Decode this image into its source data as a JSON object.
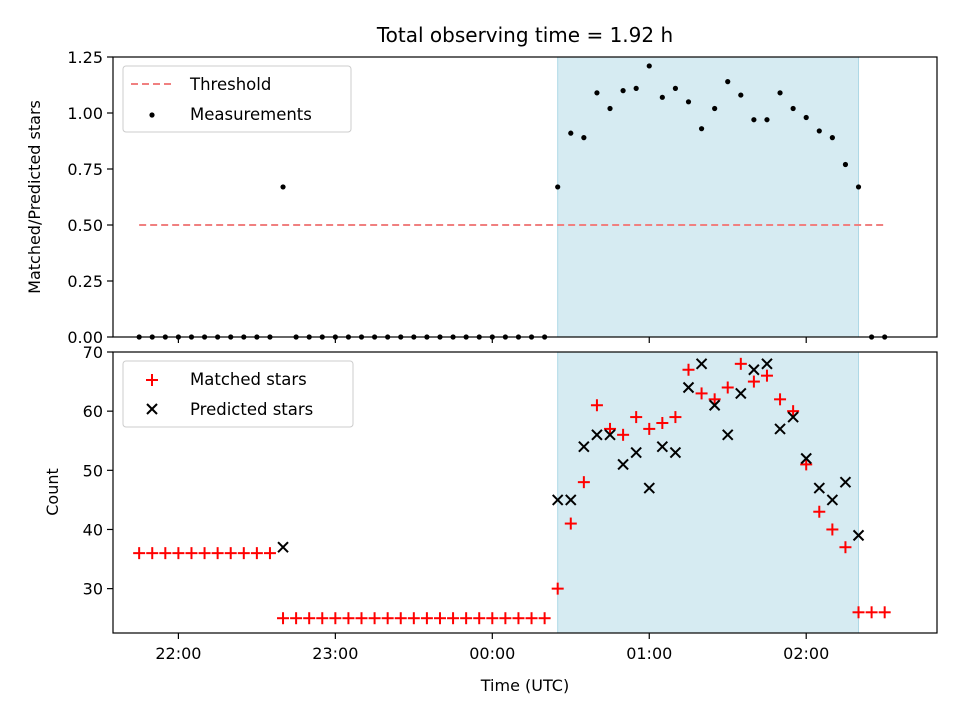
{
  "title": "Total observing time = 1.92 h",
  "colors": {
    "threshold": "#f08080",
    "measurements": "#000000",
    "matched": "#ff0000",
    "predicted": "#000000",
    "shade": "#add8e6"
  },
  "chart_data": [
    {
      "type": "scatter",
      "panel": "top",
      "ylabel": "Matched/Predicted stars",
      "ylim": [
        0,
        1.25
      ],
      "yticks": [
        "0.00",
        "0.25",
        "0.50",
        "0.75",
        "1.00",
        "1.25"
      ],
      "xlim": [
        "21:35",
        "02:50"
      ],
      "shaded_span": [
        "00:25",
        "02:20"
      ],
      "legend_position": "upper left",
      "threshold": {
        "name": "Threshold",
        "value": 0.5,
        "x": [
          "21:45",
          "02:30"
        ]
      },
      "series": [
        {
          "name": "Measurements",
          "points": [
            [
              "21:45",
              0
            ],
            [
              "21:50",
              0
            ],
            [
              "21:55",
              0
            ],
            [
              "22:00",
              0
            ],
            [
              "22:05",
              0
            ],
            [
              "22:10",
              0
            ],
            [
              "22:15",
              0
            ],
            [
              "22:20",
              0
            ],
            [
              "22:25",
              0
            ],
            [
              "22:30",
              0
            ],
            [
              "22:35",
              0
            ],
            [
              "22:40",
              0.67
            ],
            [
              "22:45",
              0
            ],
            [
              "22:50",
              0
            ],
            [
              "22:55",
              0
            ],
            [
              "23:00",
              0
            ],
            [
              "23:05",
              0
            ],
            [
              "23:10",
              0
            ],
            [
              "23:15",
              0
            ],
            [
              "23:20",
              0
            ],
            [
              "23:25",
              0
            ],
            [
              "23:30",
              0
            ],
            [
              "23:35",
              0
            ],
            [
              "23:40",
              0
            ],
            [
              "23:45",
              0
            ],
            [
              "23:50",
              0
            ],
            [
              "23:55",
              0
            ],
            [
              "00:00",
              0
            ],
            [
              "00:05",
              0
            ],
            [
              "00:10",
              0
            ],
            [
              "00:15",
              0
            ],
            [
              "00:20",
              0
            ],
            [
              "00:25",
              0.67
            ],
            [
              "00:30",
              0.91
            ],
            [
              "00:35",
              0.89
            ],
            [
              "00:40",
              1.09
            ],
            [
              "00:45",
              1.02
            ],
            [
              "00:50",
              1.1
            ],
            [
              "00:55",
              1.11
            ],
            [
              "01:00",
              1.21
            ],
            [
              "01:05",
              1.07
            ],
            [
              "01:10",
              1.11
            ],
            [
              "01:15",
              1.05
            ],
            [
              "01:20",
              0.93
            ],
            [
              "01:25",
              1.02
            ],
            [
              "01:30",
              1.14
            ],
            [
              "01:35",
              1.08
            ],
            [
              "01:40",
              0.97
            ],
            [
              "01:45",
              0.97
            ],
            [
              "01:50",
              1.09
            ],
            [
              "01:55",
              1.02
            ],
            [
              "02:00",
              0.98
            ],
            [
              "02:05",
              0.92
            ],
            [
              "02:10",
              0.89
            ],
            [
              "02:15",
              0.77
            ],
            [
              "02:20",
              0.67
            ],
            [
              "02:25",
              0
            ],
            [
              "02:30",
              0
            ]
          ]
        }
      ]
    },
    {
      "type": "scatter",
      "panel": "bottom",
      "xlabel": "Time (UTC)",
      "ylabel": "Count",
      "ylim": [
        22.5,
        70
      ],
      "yticks": [
        "30",
        "40",
        "50",
        "60",
        "70"
      ],
      "xlim": [
        "21:35",
        "02:50"
      ],
      "xticks": [
        "22:00",
        "23:00",
        "00:00",
        "01:00",
        "02:00"
      ],
      "shaded_span": [
        "00:25",
        "02:20"
      ],
      "legend_position": "upper left",
      "series": [
        {
          "name": "Matched stars",
          "marker": "plus",
          "points": [
            [
              "21:45",
              36
            ],
            [
              "21:50",
              36
            ],
            [
              "21:55",
              36
            ],
            [
              "22:00",
              36
            ],
            [
              "22:05",
              36
            ],
            [
              "22:10",
              36
            ],
            [
              "22:15",
              36
            ],
            [
              "22:20",
              36
            ],
            [
              "22:25",
              36
            ],
            [
              "22:30",
              36
            ],
            [
              "22:35",
              36
            ],
            [
              "22:40",
              25
            ],
            [
              "22:45",
              25
            ],
            [
              "22:50",
              25
            ],
            [
              "22:55",
              25
            ],
            [
              "23:00",
              25
            ],
            [
              "23:05",
              25
            ],
            [
              "23:10",
              25
            ],
            [
              "23:15",
              25
            ],
            [
              "23:20",
              25
            ],
            [
              "23:25",
              25
            ],
            [
              "23:30",
              25
            ],
            [
              "23:35",
              25
            ],
            [
              "23:40",
              25
            ],
            [
              "23:45",
              25
            ],
            [
              "23:50",
              25
            ],
            [
              "23:55",
              25
            ],
            [
              "00:00",
              25
            ],
            [
              "00:05",
              25
            ],
            [
              "00:10",
              25
            ],
            [
              "00:15",
              25
            ],
            [
              "00:20",
              25
            ],
            [
              "00:25",
              30
            ],
            [
              "00:30",
              41
            ],
            [
              "00:35",
              48
            ],
            [
              "00:40",
              61
            ],
            [
              "00:45",
              57
            ],
            [
              "00:50",
              56
            ],
            [
              "00:55",
              59
            ],
            [
              "01:00",
              57
            ],
            [
              "01:05",
              58
            ],
            [
              "01:10",
              59
            ],
            [
              "01:15",
              67
            ],
            [
              "01:20",
              63
            ],
            [
              "01:25",
              62
            ],
            [
              "01:30",
              64
            ],
            [
              "01:35",
              68
            ],
            [
              "01:40",
              65
            ],
            [
              "01:45",
              66
            ],
            [
              "01:50",
              62
            ],
            [
              "01:55",
              60
            ],
            [
              "02:00",
              51
            ],
            [
              "02:05",
              43
            ],
            [
              "02:10",
              40
            ],
            [
              "02:15",
              37
            ],
            [
              "02:20",
              26
            ],
            [
              "02:25",
              26
            ],
            [
              "02:30",
              26
            ]
          ]
        },
        {
          "name": "Predicted stars",
          "marker": "x",
          "points": [
            [
              "22:40",
              37
            ],
            [
              "00:25",
              45
            ],
            [
              "00:30",
              45
            ],
            [
              "00:35",
              54
            ],
            [
              "00:40",
              56
            ],
            [
              "00:45",
              56
            ],
            [
              "00:50",
              51
            ],
            [
              "00:55",
              53
            ],
            [
              "01:00",
              47
            ],
            [
              "01:05",
              54
            ],
            [
              "01:10",
              53
            ],
            [
              "01:15",
              64
            ],
            [
              "01:20",
              68
            ],
            [
              "01:25",
              61
            ],
            [
              "01:30",
              56
            ],
            [
              "01:35",
              63
            ],
            [
              "01:40",
              67
            ],
            [
              "01:45",
              68
            ],
            [
              "01:50",
              57
            ],
            [
              "01:55",
              59
            ],
            [
              "02:00",
              52
            ],
            [
              "02:05",
              47
            ],
            [
              "02:10",
              45
            ],
            [
              "02:15",
              48
            ],
            [
              "02:20",
              39
            ]
          ]
        }
      ]
    }
  ]
}
